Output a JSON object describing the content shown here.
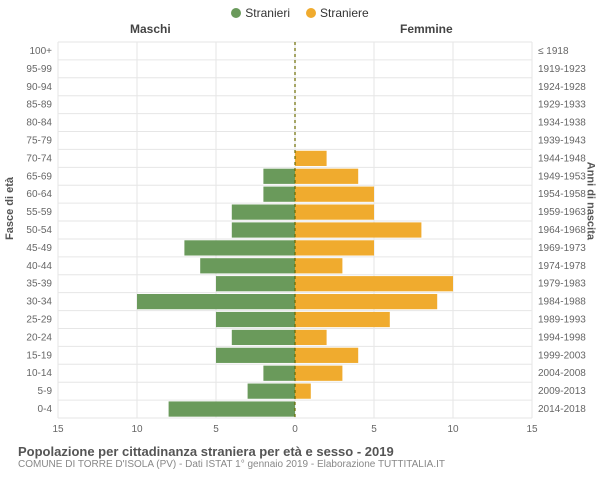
{
  "legend": {
    "male": {
      "label": "Stranieri",
      "color": "#6a9a5b"
    },
    "female": {
      "label": "Straniere",
      "color": "#f0ab2e"
    }
  },
  "headers": {
    "left": "Maschi",
    "right": "Femmine"
  },
  "axis_labels": {
    "left": "Fasce di età",
    "right": "Anni di nascita"
  },
  "footer": {
    "title": "Popolazione per cittadinanza straniera per età e sesso - 2019",
    "subtitle": "COMUNE DI TORRE D'ISOLA (PV) - Dati ISTAT 1° gennaio 2019 - Elaborazione TUTTITALIA.IT"
  },
  "chart": {
    "type": "population-pyramid",
    "xlim": [
      -15,
      15
    ],
    "xticks": [
      -15,
      -10,
      -5,
      0,
      5,
      10,
      15
    ],
    "xtick_labels": [
      "15",
      "10",
      "5",
      "0",
      "5",
      "10",
      "15"
    ],
    "background_color": "#ffffff",
    "grid_color": "#e6e6e6",
    "center_line_color": "#6b6b00",
    "male_color": "#6a9a5b",
    "female_color": "#f0ab2e",
    "bar_gap": 0.15,
    "rows": [
      {
        "age": "100+",
        "birth": "≤ 1918",
        "male": 0,
        "female": 0
      },
      {
        "age": "95-99",
        "birth": "1919-1923",
        "male": 0,
        "female": 0
      },
      {
        "age": "90-94",
        "birth": "1924-1928",
        "male": 0,
        "female": 0
      },
      {
        "age": "85-89",
        "birth": "1929-1933",
        "male": 0,
        "female": 0
      },
      {
        "age": "80-84",
        "birth": "1934-1938",
        "male": 0,
        "female": 0
      },
      {
        "age": "75-79",
        "birth": "1939-1943",
        "male": 0,
        "female": 0
      },
      {
        "age": "70-74",
        "birth": "1944-1948",
        "male": 0,
        "female": 2
      },
      {
        "age": "65-69",
        "birth": "1949-1953",
        "male": 2,
        "female": 4
      },
      {
        "age": "60-64",
        "birth": "1954-1958",
        "male": 2,
        "female": 5
      },
      {
        "age": "55-59",
        "birth": "1959-1963",
        "male": 4,
        "female": 5
      },
      {
        "age": "50-54",
        "birth": "1964-1968",
        "male": 4,
        "female": 8
      },
      {
        "age": "45-49",
        "birth": "1969-1973",
        "male": 7,
        "female": 5
      },
      {
        "age": "40-44",
        "birth": "1974-1978",
        "male": 6,
        "female": 3
      },
      {
        "age": "35-39",
        "birth": "1979-1983",
        "male": 5,
        "female": 10
      },
      {
        "age": "30-34",
        "birth": "1984-1988",
        "male": 10,
        "female": 9
      },
      {
        "age": "25-29",
        "birth": "1989-1993",
        "male": 5,
        "female": 6
      },
      {
        "age": "20-24",
        "birth": "1994-1998",
        "male": 4,
        "female": 2
      },
      {
        "age": "15-19",
        "birth": "1999-2003",
        "male": 5,
        "female": 4
      },
      {
        "age": "10-14",
        "birth": "2004-2008",
        "male": 2,
        "female": 3
      },
      {
        "age": "5-9",
        "birth": "2009-2013",
        "male": 3,
        "female": 1
      },
      {
        "age": "0-4",
        "birth": "2014-2018",
        "male": 8,
        "female": 0
      }
    ]
  }
}
